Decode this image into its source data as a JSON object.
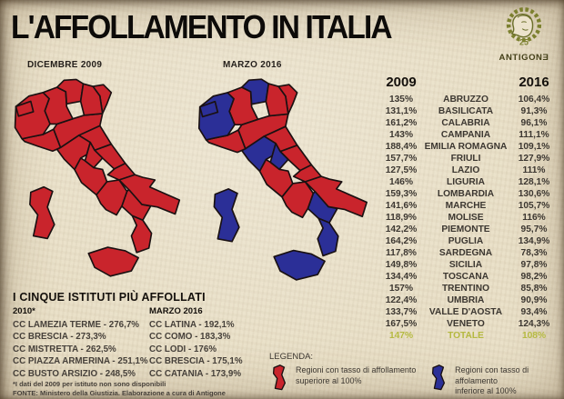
{
  "title": "L'AFFOLLAMENTO IN ITALIA",
  "logo": {
    "badge": "25",
    "brand": "ANTIGONƎ"
  },
  "maps": {
    "left_label": "DICEMBRE 2009",
    "right_label": "MARZO 2016"
  },
  "colors": {
    "over": "#c9242c",
    "under": "#2b2f97",
    "outline": "#1a1112",
    "totale": "#b5b940",
    "background": "#eae1c9"
  },
  "table": {
    "col_2009": "2009",
    "col_2016": "2016",
    "rows": [
      {
        "name": "ABRUZZO",
        "v2009": "135%",
        "v2016": "106,4%"
      },
      {
        "name": "BASILICATA",
        "v2009": "131,1%",
        "v2016": "91,3%"
      },
      {
        "name": "CALABRIA",
        "v2009": "161,2%",
        "v2016": "96,1%"
      },
      {
        "name": "CAMPANIA",
        "v2009": "143%",
        "v2016": "111,1%"
      },
      {
        "name": "EMILIA ROMAGNA",
        "v2009": "188,4%",
        "v2016": "109,1%"
      },
      {
        "name": "FRIULI",
        "v2009": "157,7%",
        "v2016": "127,9%"
      },
      {
        "name": "LAZIO",
        "v2009": "127,5%",
        "v2016": "111%"
      },
      {
        "name": "LIGURIA",
        "v2009": "146%",
        "v2016": "128,1%"
      },
      {
        "name": "LOMBARDIA",
        "v2009": "159,3%",
        "v2016": "130,6%"
      },
      {
        "name": "MARCHE",
        "v2009": "141,6%",
        "v2016": "105,7%"
      },
      {
        "name": "MOLISE",
        "v2009": "118,9%",
        "v2016": "116%"
      },
      {
        "name": "PIEMONTE",
        "v2009": "142,2%",
        "v2016": "95,7%"
      },
      {
        "name": "PUGLIA",
        "v2009": "164,2%",
        "v2016": "134,9%"
      },
      {
        "name": "SARDEGNA",
        "v2009": "117,8%",
        "v2016": "78,3%"
      },
      {
        "name": "SICILIA",
        "v2009": "149,8%",
        "v2016": "97,8%"
      },
      {
        "name": "TOSCANA",
        "v2009": "134,4%",
        "v2016": "98,2%"
      },
      {
        "name": "TRENTINO",
        "v2009": "157%",
        "v2016": "85,8%"
      },
      {
        "name": "UMBRIA",
        "v2009": "122,4%",
        "v2016": "90,9%"
      },
      {
        "name": "VALLE D'AOSTA",
        "v2009": "133,7%",
        "v2016": "93,4%"
      },
      {
        "name": "VENETO",
        "v2009": "167,5%",
        "v2016": "124,3%"
      }
    ],
    "total": {
      "name": "TOTALE",
      "v2009": "147%",
      "v2016": "108%"
    }
  },
  "institutes": {
    "heading": "I CINQUE ISTITUTI PIÙ AFFOLLATI",
    "col1_header": "2010*",
    "col2_header": "MARZO 2016",
    "col1": [
      "CC LAMEZIA TERME - 276,7%",
      "CC BRESCIA - 273,3%",
      "CC MISTRETTA - 262,5%",
      "CC PIAZZA ARMERINA - 251,1%",
      "CC BUSTO ARSIZIO - 248,5%"
    ],
    "col2": [
      "CC LATINA - 192,1%",
      "CC COMO - 183,3%",
      "CC LODI - 176%",
      "CC BRESCIA - 175,1%",
      "CC CATANIA - 173,9%"
    ],
    "footnote1": "*I dati del 2009 per istituto non sono disponibili",
    "footnote2": "FONTE: Ministero della Giustizia. Elaborazione a cura di Antigone"
  },
  "legend": {
    "heading": "LEGENDA:",
    "items": [
      {
        "line1": "Regioni con tasso di affollamento",
        "line2": "superiore al 100%"
      },
      {
        "line1": "Regioni con tasso di affolamento",
        "line2": "inferiore al 100%"
      }
    ]
  },
  "chart_data": {
    "type": "heatmap",
    "subtype": "choropleth-pair-with-table",
    "title": "L'AFFOLLAMENTO IN ITALIA",
    "maps": [
      "DICEMBRE 2009",
      "MARZO 2016"
    ],
    "unit": "% tasso di affollamento",
    "threshold": 100,
    "categories": [
      "ABRUZZO",
      "BASILICATA",
      "CALABRIA",
      "CAMPANIA",
      "EMILIA ROMAGNA",
      "FRIULI",
      "LAZIO",
      "LIGURIA",
      "LOMBARDIA",
      "MARCHE",
      "MOLISE",
      "PIEMONTE",
      "PUGLIA",
      "SARDEGNA",
      "SICILIA",
      "TOSCANA",
      "TRENTINO",
      "UMBRIA",
      "VALLE D'AOSTA",
      "VENETO"
    ],
    "series": [
      {
        "name": "2009",
        "values": [
          135,
          131.1,
          161.2,
          143,
          188.4,
          157.7,
          127.5,
          146,
          159.3,
          141.6,
          118.9,
          142.2,
          164.2,
          117.8,
          149.8,
          134.4,
          157,
          122.4,
          133.7,
          167.5
        ]
      },
      {
        "name": "2016",
        "values": [
          106.4,
          91.3,
          96.1,
          111.1,
          109.1,
          127.9,
          111,
          128.1,
          130.6,
          105.7,
          116,
          95.7,
          134.9,
          78.3,
          97.8,
          98.2,
          85.8,
          90.9,
          93.4,
          124.3
        ]
      }
    ],
    "total": {
      "2009": 147,
      "2016": 108
    },
    "legend_rule": "red = over 100%, blue = under 100%"
  }
}
